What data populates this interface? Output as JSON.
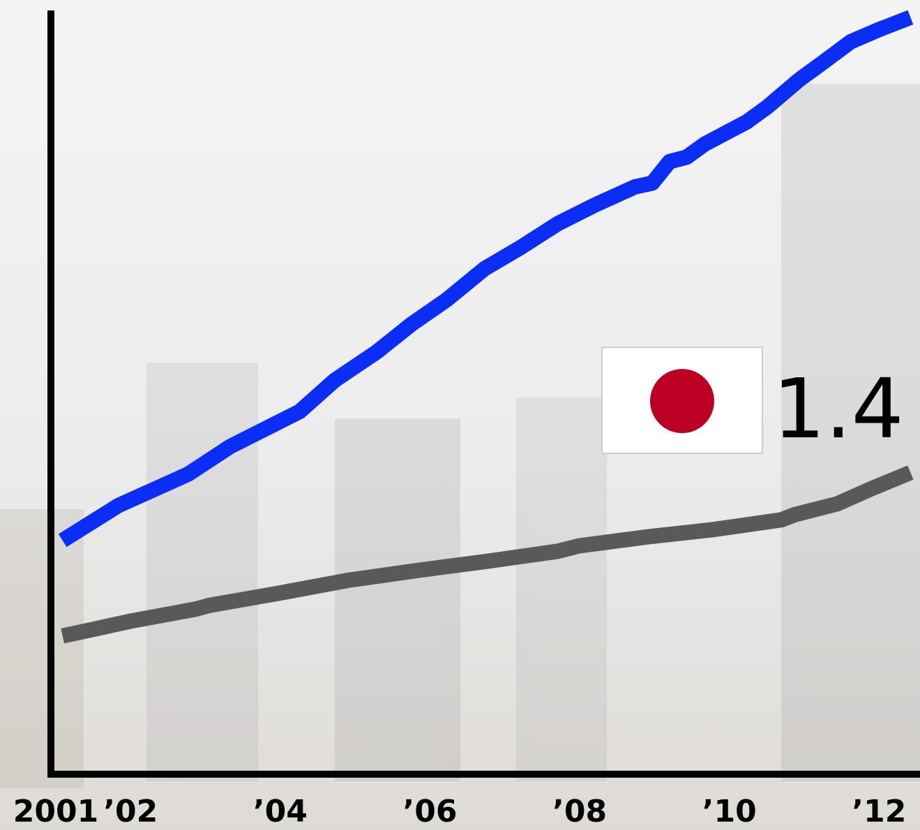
{
  "chart_data": {
    "type": "line",
    "annotation": "1.4",
    "xlim": [
      2001,
      2012.5
    ],
    "ylim": [
      0,
      100
    ],
    "xticks": [
      {
        "value": 2001,
        "label": "2001"
      },
      {
        "value": 2002,
        "label": "’02"
      },
      {
        "value": 2004,
        "label": "’04"
      },
      {
        "value": 2006,
        "label": "’06"
      },
      {
        "value": 2008,
        "label": "’08"
      },
      {
        "value": 2010,
        "label": "’10"
      },
      {
        "value": 2012,
        "label": "’12"
      }
    ],
    "series": [
      {
        "color": "#0a2ef5",
        "x": [
          2001.09,
          2001.84,
          2002.77,
          2003.33,
          2004.26,
          2004.73,
          2005.29,
          2005.75,
          2006.22,
          2006.73,
          2007.2,
          2007.71,
          2008.22,
          2008.74,
          2008.97,
          2009.2,
          2009.43,
          2009.67,
          2010.23,
          2010.51,
          2010.93,
          2011.25,
          2011.62,
          2012.0,
          2012.42
        ],
        "values": [
          30.6,
          35.2,
          39.3,
          42.9,
          47.5,
          51.6,
          55.3,
          58.9,
          62.1,
          66.2,
          68.9,
          72.1,
          74.6,
          76.9,
          77.4,
          80.2,
          80.8,
          82.5,
          85.4,
          87.4,
          90.9,
          93.2,
          95.9,
          97.5,
          99.1
        ]
      },
      {
        "color": "#595959",
        "x": [
          2001.09,
          2002.03,
          2002.86,
          2003.05,
          2003.98,
          2004.91,
          2005.85,
          2006.78,
          2007.71,
          2007.99,
          2008.92,
          2009.76,
          2010.69,
          2010.88,
          2011.44,
          2011.9,
          2012.42
        ],
        "values": [
          18.1,
          20.1,
          21.6,
          22.1,
          23.7,
          25.4,
          26.7,
          27.9,
          29.2,
          29.9,
          31.1,
          32.0,
          33.3,
          34.0,
          35.4,
          37.4,
          39.5
        ]
      }
    ]
  }
}
